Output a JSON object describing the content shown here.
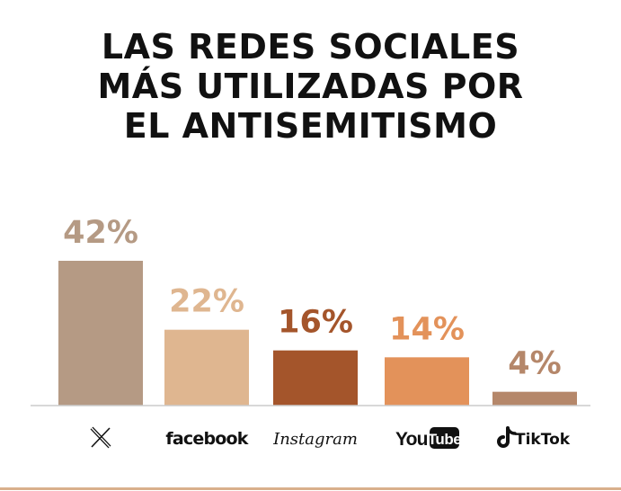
{
  "chart_data": {
    "type": "bar",
    "title_lines": [
      "LAS REDES SOCIALES",
      "MÁS UTILIZADAS POR",
      "EL ANTISEMITISMO"
    ],
    "categories": [
      "X",
      "facebook",
      "Instagram",
      "YouTube",
      "TikTok"
    ],
    "values": [
      42,
      22,
      16,
      14,
      4
    ],
    "data_labels": [
      "42%",
      "22%",
      "16%",
      "14%",
      "4%"
    ],
    "unit": "%",
    "colors": [
      "#b59a84",
      "#dfb690",
      "#a4552b",
      "#e3925a",
      "#b5876a"
    ],
    "label_colors": [
      "#b59a84",
      "#dfb690",
      "#a4552b",
      "#e3925a",
      "#b5876a"
    ],
    "icons": [
      "x-logo-icon",
      "facebook-logo-icon",
      "instagram-logo-icon",
      "youtube-logo-icon",
      "tiktok-logo-icon"
    ],
    "ylim": [
      0,
      42
    ],
    "grid": false,
    "legend": "none"
  },
  "colors": {
    "title": "#111111",
    "baseline": "#cccccc",
    "bottom_rule": "#d9b08c"
  }
}
